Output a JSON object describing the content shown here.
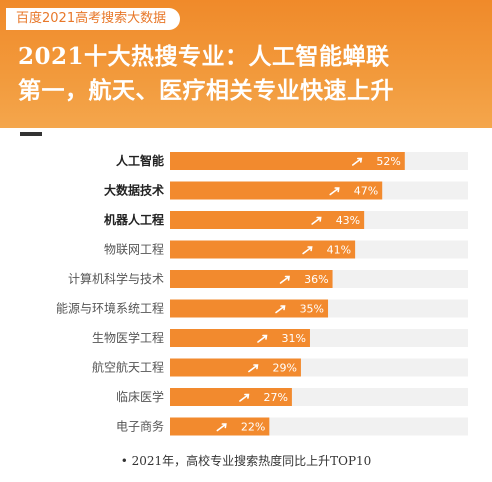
{
  "header": {
    "source_tag": "百度2021高考搜索大数据",
    "headline_line1": "2021十大热搜专业：人工智能蝉联",
    "headline_line2": "第一，航天、医疗相关专业快速上升"
  },
  "colors": {
    "bar_fill": "#f28a2e",
    "track": "#f1f1f1",
    "label_bold": "#222222",
    "label_normal": "#555555"
  },
  "chart_data": {
    "type": "bar",
    "orientation": "horizontal",
    "categories": [
      "人工智能",
      "大数据技术",
      "机器人工程",
      "物联网工程",
      "计算机科学与技术",
      "能源与环境系统工程",
      "生物医学工程",
      "航空航天工程",
      "临床医学",
      "电子商务"
    ],
    "values": [
      52,
      47,
      43,
      41,
      36,
      35,
      31,
      29,
      27,
      22
    ],
    "value_labels": [
      "52%",
      "47%",
      "43%",
      "41%",
      "36%",
      "35%",
      "31%",
      "29%",
      "27%",
      "22%"
    ],
    "bold_categories": [
      "人工智能",
      "大数据技术",
      "机器人工程"
    ],
    "xlim": [
      0,
      66
    ],
    "grid": false
  },
  "footnote": "• 2021年，高校专业搜索热度同比上升TOP10"
}
